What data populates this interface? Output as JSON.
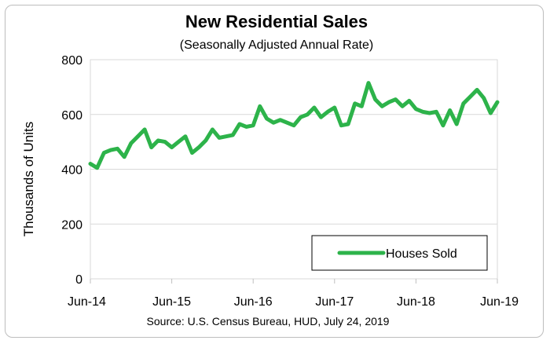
{
  "chart_data": {
    "type": "line",
    "title": "New Residential Sales",
    "subtitle": "(Seasonally Adjusted Annual Rate)",
    "ylabel": "Thousands of Units",
    "xlabel": "",
    "ylim": [
      0,
      800
    ],
    "yticks": [
      0,
      200,
      400,
      600,
      800
    ],
    "x_tick_labels": [
      "Jun-14",
      "Jun-15",
      "Jun-16",
      "Jun-17",
      "Jun-18",
      "Jun-19"
    ],
    "grid": "horizontal",
    "legend_position": "bottom-right",
    "source": "Source:  U.S. Census Bureau, HUD, July 24, 2019",
    "series": [
      {
        "name": "Houses Sold",
        "color": "#2db34a",
        "x": [
          "2014-06",
          "2014-07",
          "2014-08",
          "2014-09",
          "2014-10",
          "2014-11",
          "2014-12",
          "2015-01",
          "2015-02",
          "2015-03",
          "2015-04",
          "2015-05",
          "2015-06",
          "2015-07",
          "2015-08",
          "2015-09",
          "2015-10",
          "2015-11",
          "2015-12",
          "2016-01",
          "2016-02",
          "2016-03",
          "2016-04",
          "2016-05",
          "2016-06",
          "2016-07",
          "2016-08",
          "2016-09",
          "2016-10",
          "2016-11",
          "2016-12",
          "2017-01",
          "2017-02",
          "2017-03",
          "2017-04",
          "2017-05",
          "2017-06",
          "2017-07",
          "2017-08",
          "2017-09",
          "2017-10",
          "2017-11",
          "2017-12",
          "2018-01",
          "2018-02",
          "2018-03",
          "2018-04",
          "2018-05",
          "2018-06",
          "2018-07",
          "2018-08",
          "2018-09",
          "2018-10",
          "2018-11",
          "2018-12",
          "2019-01",
          "2019-02",
          "2019-03",
          "2019-04",
          "2019-05",
          "2019-06"
        ],
        "values": [
          420,
          405,
          460,
          470,
          475,
          445,
          495,
          520,
          545,
          480,
          505,
          500,
          480,
          500,
          520,
          460,
          480,
          505,
          545,
          515,
          520,
          525,
          565,
          555,
          560,
          630,
          585,
          570,
          580,
          570,
          560,
          590,
          600,
          625,
          590,
          610,
          625,
          560,
          565,
          640,
          630,
          715,
          655,
          630,
          645,
          655,
          630,
          650,
          620,
          610,
          605,
          610,
          560,
          615,
          565,
          640,
          665,
          690,
          660,
          605,
          645
        ]
      }
    ]
  }
}
